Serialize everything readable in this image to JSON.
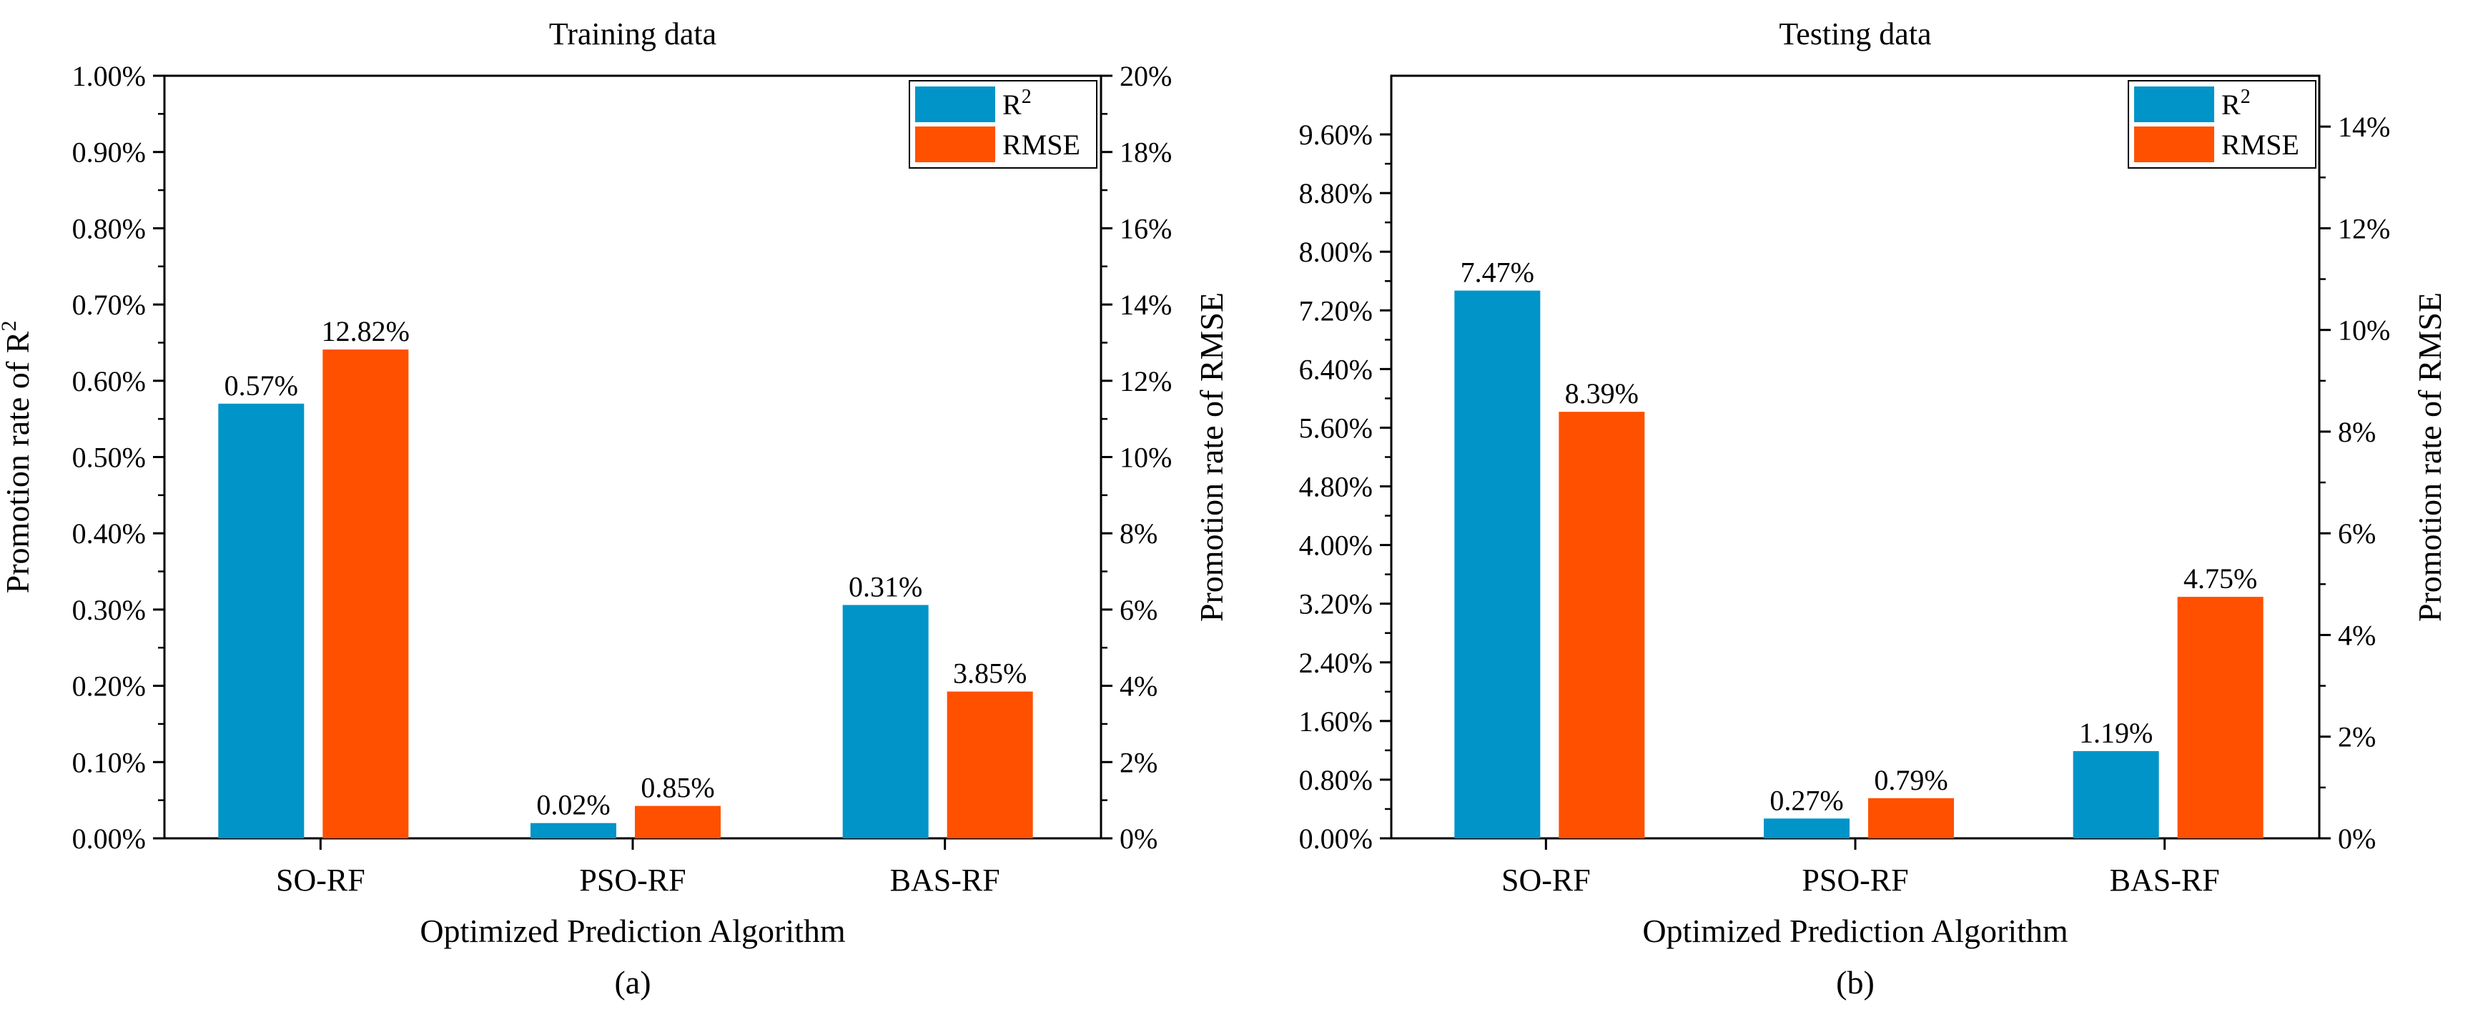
{
  "colors": {
    "r2": "#0094c8",
    "rmse": "#ff5000",
    "axis": "#000000"
  },
  "chart_data": [
    {
      "type": "bar",
      "title": "Training data",
      "subcaption": "(a)",
      "xlabel": "Optimized Prediction Algorithm",
      "ylabel_left": "Promotion rate of  R",
      "ylabel_left_sup": "2",
      "ylabel_right": "Promotion rate of  RMSE",
      "categories": [
        "SO-RF",
        "PSO-RF",
        "BAS-RF"
      ],
      "legend": {
        "placement": "top-right",
        "r2_label": "R",
        "r2_sup": "2",
        "rmse_label": "RMSE"
      },
      "left_axis": {
        "range": [
          0,
          1.0
        ],
        "ticks": [
          0,
          0.1,
          0.2,
          0.3,
          0.4,
          0.5,
          0.6,
          0.7,
          0.8,
          0.9,
          1.0
        ],
        "tick_labels": [
          "0.00%",
          "0.10%",
          "0.20%",
          "0.30%",
          "0.40%",
          "0.50%",
          "0.60%",
          "0.70%",
          "0.80%",
          "0.90%",
          "1.00%"
        ]
      },
      "right_axis": {
        "range": [
          0,
          20
        ],
        "ticks": [
          0,
          2,
          4,
          6,
          8,
          10,
          12,
          14,
          16,
          18,
          20
        ],
        "tick_labels": [
          "0%",
          "2%",
          "4%",
          "6%",
          "8%",
          "10%",
          "12%",
          "14%",
          "16%",
          "18%",
          "20%"
        ]
      },
      "series": [
        {
          "name": "R2",
          "axis": "left",
          "color_key": "r2",
          "values": [
            0.57,
            0.02,
            0.306
          ],
          "labels": [
            "0.57%",
            "0.02%",
            "0.31%"
          ]
        },
        {
          "name": "RMSE",
          "axis": "right",
          "color_key": "rmse",
          "values": [
            12.82,
            0.85,
            3.85
          ],
          "labels": [
            "12.82%",
            "0.85%",
            "3.85%"
          ]
        }
      ]
    },
    {
      "type": "bar",
      "title": "Testing data",
      "subcaption": "(b)",
      "xlabel": "Optimized Prediction Algorithm",
      "ylabel_left": "",
      "ylabel_left_sup": "",
      "ylabel_right": "Promotion rate of  RMSE",
      "categories": [
        "SO-RF",
        "PSO-RF",
        "BAS-RF"
      ],
      "legend": {
        "placement": "top-right",
        "r2_label": "R",
        "r2_sup": "2",
        "rmse_label": "RMSE"
      },
      "left_axis": {
        "range": [
          0,
          10.4
        ],
        "ticks": [
          0,
          0.8,
          1.6,
          2.4,
          3.2,
          4.0,
          4.8,
          5.6,
          6.4,
          7.2,
          8.0,
          8.8,
          9.6
        ],
        "tick_labels": [
          "0.00%",
          "0.80%",
          "1.60%",
          "2.40%",
          "3.20%",
          "4.00%",
          "4.80%",
          "5.60%",
          "6.40%",
          "7.20%",
          "8.00%",
          "8.80%",
          "9.60%"
        ]
      },
      "right_axis": {
        "range": [
          0,
          15
        ],
        "ticks": [
          0,
          2,
          4,
          6,
          8,
          10,
          12,
          14
        ],
        "tick_labels": [
          "0%",
          "2%",
          "4%",
          "6%",
          "8%",
          "10%",
          "12%",
          "14%"
        ]
      },
      "series": [
        {
          "name": "R2",
          "axis": "left",
          "color_key": "r2",
          "values": [
            7.47,
            0.27,
            1.19
          ],
          "labels": [
            "7.47%",
            "0.27%",
            "1.19%"
          ]
        },
        {
          "name": "RMSE",
          "axis": "right",
          "color_key": "rmse",
          "values": [
            8.39,
            0.79,
            4.75
          ],
          "labels": [
            "8.39%",
            "0.79%",
            "4.75%"
          ]
        }
      ]
    }
  ]
}
